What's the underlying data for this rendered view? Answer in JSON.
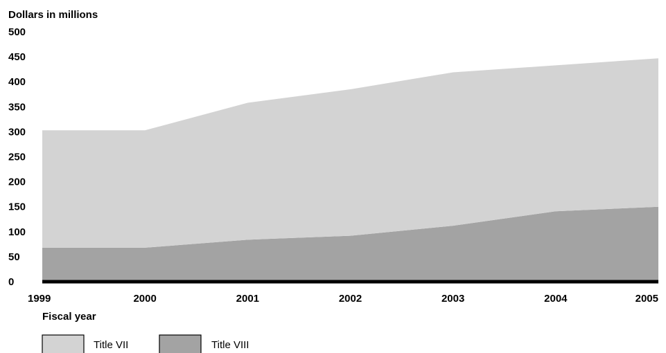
{
  "chart_data": {
    "type": "area",
    "stacked": true,
    "ylabel": "Dollars in millions",
    "xlabel": "Fiscal year",
    "x": [
      "1999",
      "2000",
      "2001",
      "2002",
      "2003",
      "2004",
      "2005"
    ],
    "ylim": [
      0,
      500
    ],
    "yticks": [
      "0",
      "50",
      "100",
      "150",
      "200",
      "250",
      "300",
      "350",
      "400",
      "450",
      "500"
    ],
    "grid": false,
    "legend_position": "bottom-left",
    "series": [
      {
        "name": "Title VIII",
        "values": [
          68,
          68,
          84,
          92,
          112,
          141,
          150
        ],
        "color": "#a3a3a3"
      },
      {
        "name": "Title VII",
        "values": [
          235,
          235,
          274,
          293,
          307,
          292,
          297
        ],
        "color": "#d3d3d3"
      }
    ],
    "totals": [
      303,
      303,
      358,
      385,
      419,
      433,
      447
    ],
    "legend": [
      {
        "label": "Title VII",
        "color": "#d3d3d3"
      },
      {
        "label": "Title VIII",
        "color": "#a3a3a3"
      }
    ],
    "axis_color": "#000000"
  }
}
